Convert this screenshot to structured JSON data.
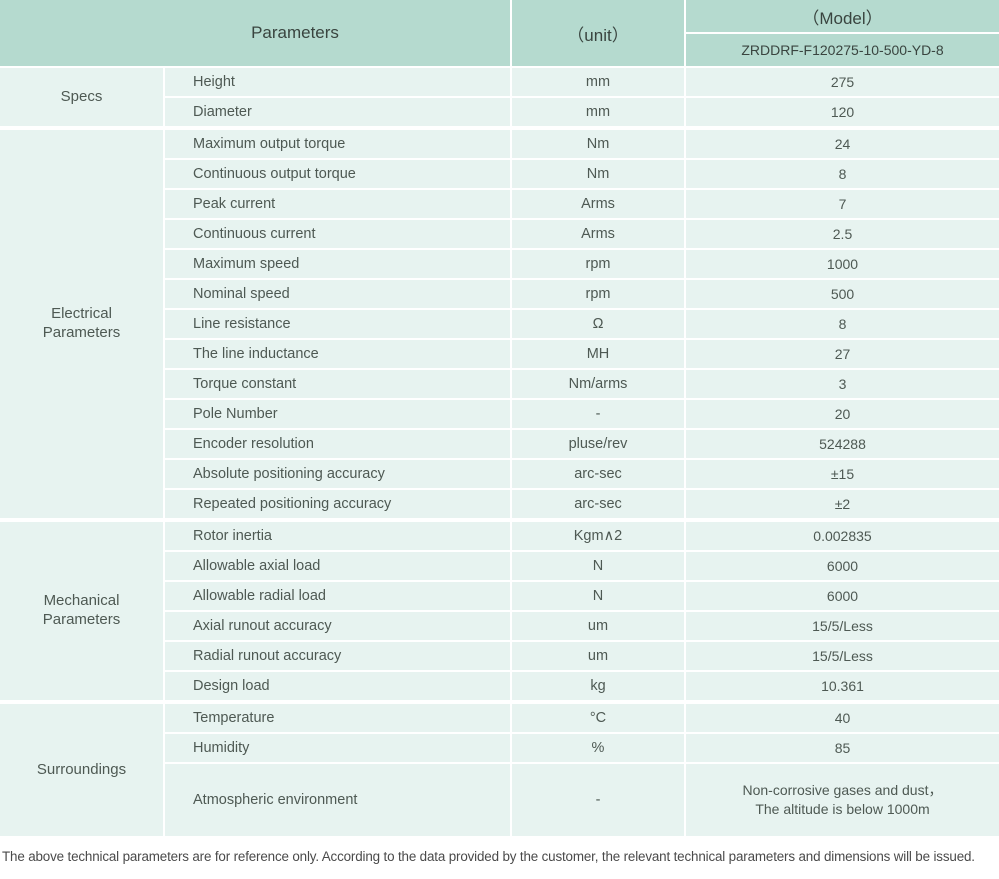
{
  "header": {
    "parameters_label": "Parameters",
    "unit_label": "（unit）",
    "model_label": "（Model）",
    "model_value": "ZRDDRF-F120275-10-500-YD-8"
  },
  "groups": [
    {
      "label": "Specs",
      "rows": [
        {
          "parameter": "Height",
          "unit": "mm",
          "value": "275"
        },
        {
          "parameter": "Diameter",
          "unit": "mm",
          "value": "120"
        }
      ]
    },
    {
      "label": "Electrical Parameters",
      "rows": [
        {
          "parameter": "Maximum output torque",
          "unit": "Nm",
          "value": "24"
        },
        {
          "parameter": "Continuous output torque",
          "unit": "Nm",
          "value": "8"
        },
        {
          "parameter": "Peak current",
          "unit": "Arms",
          "value": "7"
        },
        {
          "parameter": "Continuous current",
          "unit": "Arms",
          "value": "2.5"
        },
        {
          "parameter": "Maximum speed",
          "unit": "rpm",
          "value": "1000"
        },
        {
          "parameter": "Nominal speed",
          "unit": "rpm",
          "value": "500"
        },
        {
          "parameter": "Line resistance",
          "unit": "Ω",
          "value": "8"
        },
        {
          "parameter": "The line inductance",
          "unit": "MH",
          "value": "27"
        },
        {
          "parameter": "Torque constant",
          "unit": "Nm/arms",
          "value": "3"
        },
        {
          "parameter": "Pole Number",
          "unit": "-",
          "value": "20"
        },
        {
          "parameter": "Encoder resolution",
          "unit": "pluse/rev",
          "value": "524288"
        },
        {
          "parameter": "Absolute positioning accuracy",
          "unit": "arc-sec",
          "value": "±15"
        },
        {
          "parameter": "Repeated positioning accuracy",
          "unit": "arc-sec",
          "value": "±2"
        }
      ]
    },
    {
      "label": "Mechanical Parameters",
      "rows": [
        {
          "parameter": "Rotor inertia",
          "unit": "Kgm∧2",
          "value": "0.002835"
        },
        {
          "parameter": "Allowable axial load",
          "unit": "N",
          "value": "6000"
        },
        {
          "parameter": "Allowable radial load",
          "unit": "N",
          "value": "6000"
        },
        {
          "parameter": "Axial runout accuracy",
          "unit": "um",
          "value": "15/5/Less"
        },
        {
          "parameter": "Radial runout accuracy",
          "unit": "um",
          "value": "15/5/Less"
        },
        {
          "parameter": "Design load",
          "unit": "kg",
          "value": "10.361"
        }
      ]
    },
    {
      "label": "Surroundings",
      "rows": [
        {
          "parameter": "Temperature",
          "unit": "°C",
          "value": "40"
        },
        {
          "parameter": "Humidity",
          "unit": "%",
          "value": "85"
        },
        {
          "parameter": "Atmospheric environment",
          "unit": "-",
          "value": "Non-corrosive gases and dust，\nThe altitude is below 1000m",
          "tall": true
        }
      ]
    }
  ],
  "footer": {
    "note": "The above technical parameters are for reference only. According to the data provided by the customer, the relevant technical parameters and dimensions will be issued."
  },
  "colors": {
    "header_bg": "#b5dacf",
    "row_bg": "#e7f3f0",
    "header_text": "#39443f",
    "body_text": "#4e5953",
    "footer_text": "#4a4a4a",
    "separator": "#ffffff"
  }
}
